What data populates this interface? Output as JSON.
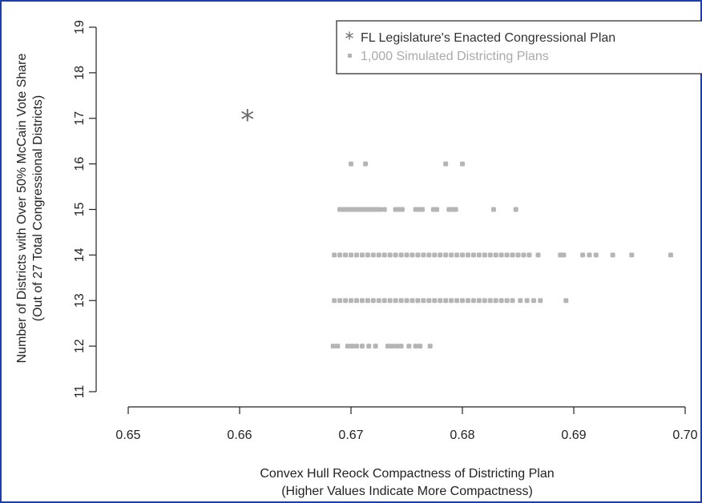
{
  "chart_data": {
    "type": "scatter",
    "title": "",
    "xlabel": [
      "Convex Hull Reock Compactness of Districting Plan",
      "(Higher Values Indicate More Compactness)"
    ],
    "ylabel": [
      "Number of Districts with Over 50% McCain Vote Share",
      "(Out of 27 Total Congressional Districts)"
    ],
    "xlim": [
      0.65,
      0.7
    ],
    "ylim": [
      11,
      19
    ],
    "xticks": [
      0.65,
      0.66,
      0.67,
      0.68,
      0.69,
      0.7
    ],
    "xtick_labels": [
      "0.65",
      "0.66",
      "0.67",
      "0.68",
      "0.69",
      "0.70"
    ],
    "yticks": [
      11,
      12,
      13,
      14,
      15,
      16,
      17,
      18,
      19
    ],
    "ytick_labels": [
      "11",
      "12",
      "13",
      "14",
      "15",
      "16",
      "17",
      "18",
      "19"
    ],
    "grid": false,
    "legend_position": "top-right",
    "colors": {
      "enacted": "#6b6b6b",
      "simulated": "#b5b5b5",
      "axis": "#222222",
      "frame": "#1f3ea8"
    },
    "series": [
      {
        "name": "FL Legislature's Enacted Congressional Plan",
        "marker": "*",
        "points": [
          {
            "x": 0.6607,
            "y": 17
          }
        ]
      },
      {
        "name": "1,000 Simulated Districting Plans",
        "marker": "square",
        "points": [
          {
            "x": 0.67,
            "y": 16
          },
          {
            "x": 0.6713,
            "y": 16
          },
          {
            "x": 0.6785,
            "y": 16
          },
          {
            "x": 0.68,
            "y": 16
          },
          {
            "x": 0.669,
            "y": 15
          },
          {
            "x": 0.6693,
            "y": 15
          },
          {
            "x": 0.6696,
            "y": 15
          },
          {
            "x": 0.6699,
            "y": 15
          },
          {
            "x": 0.6702,
            "y": 15
          },
          {
            "x": 0.6705,
            "y": 15
          },
          {
            "x": 0.6708,
            "y": 15
          },
          {
            "x": 0.6711,
            "y": 15
          },
          {
            "x": 0.6714,
            "y": 15
          },
          {
            "x": 0.6717,
            "y": 15
          },
          {
            "x": 0.672,
            "y": 15
          },
          {
            "x": 0.6723,
            "y": 15
          },
          {
            "x": 0.6726,
            "y": 15
          },
          {
            "x": 0.673,
            "y": 15
          },
          {
            "x": 0.674,
            "y": 15
          },
          {
            "x": 0.6743,
            "y": 15
          },
          {
            "x": 0.6746,
            "y": 15
          },
          {
            "x": 0.6758,
            "y": 15
          },
          {
            "x": 0.6761,
            "y": 15
          },
          {
            "x": 0.6764,
            "y": 15
          },
          {
            "x": 0.6774,
            "y": 15
          },
          {
            "x": 0.6777,
            "y": 15
          },
          {
            "x": 0.6788,
            "y": 15
          },
          {
            "x": 0.6791,
            "y": 15
          },
          {
            "x": 0.6794,
            "y": 15
          },
          {
            "x": 0.6828,
            "y": 15
          },
          {
            "x": 0.6848,
            "y": 15
          },
          {
            "x": 0.6685,
            "y": 14
          },
          {
            "x": 0.669,
            "y": 14
          },
          {
            "x": 0.6695,
            "y": 14
          },
          {
            "x": 0.67,
            "y": 14
          },
          {
            "x": 0.6705,
            "y": 14
          },
          {
            "x": 0.671,
            "y": 14
          },
          {
            "x": 0.6715,
            "y": 14
          },
          {
            "x": 0.672,
            "y": 14
          },
          {
            "x": 0.6725,
            "y": 14
          },
          {
            "x": 0.673,
            "y": 14
          },
          {
            "x": 0.6735,
            "y": 14
          },
          {
            "x": 0.674,
            "y": 14
          },
          {
            "x": 0.6745,
            "y": 14
          },
          {
            "x": 0.675,
            "y": 14
          },
          {
            "x": 0.6755,
            "y": 14
          },
          {
            "x": 0.676,
            "y": 14
          },
          {
            "x": 0.6765,
            "y": 14
          },
          {
            "x": 0.677,
            "y": 14
          },
          {
            "x": 0.6775,
            "y": 14
          },
          {
            "x": 0.678,
            "y": 14
          },
          {
            "x": 0.6785,
            "y": 14
          },
          {
            "x": 0.679,
            "y": 14
          },
          {
            "x": 0.6795,
            "y": 14
          },
          {
            "x": 0.68,
            "y": 14
          },
          {
            "x": 0.6805,
            "y": 14
          },
          {
            "x": 0.681,
            "y": 14
          },
          {
            "x": 0.6815,
            "y": 14
          },
          {
            "x": 0.682,
            "y": 14
          },
          {
            "x": 0.6825,
            "y": 14
          },
          {
            "x": 0.683,
            "y": 14
          },
          {
            "x": 0.6835,
            "y": 14
          },
          {
            "x": 0.684,
            "y": 14
          },
          {
            "x": 0.6845,
            "y": 14
          },
          {
            "x": 0.685,
            "y": 14
          },
          {
            "x": 0.6855,
            "y": 14
          },
          {
            "x": 0.686,
            "y": 14
          },
          {
            "x": 0.6868,
            "y": 14
          },
          {
            "x": 0.6888,
            "y": 14
          },
          {
            "x": 0.6891,
            "y": 14
          },
          {
            "x": 0.6908,
            "y": 14
          },
          {
            "x": 0.6914,
            "y": 14
          },
          {
            "x": 0.692,
            "y": 14
          },
          {
            "x": 0.6935,
            "y": 14
          },
          {
            "x": 0.6952,
            "y": 14
          },
          {
            "x": 0.6987,
            "y": 14
          },
          {
            "x": 0.6685,
            "y": 13
          },
          {
            "x": 0.669,
            "y": 13
          },
          {
            "x": 0.6695,
            "y": 13
          },
          {
            "x": 0.67,
            "y": 13
          },
          {
            "x": 0.6705,
            "y": 13
          },
          {
            "x": 0.671,
            "y": 13
          },
          {
            "x": 0.6715,
            "y": 13
          },
          {
            "x": 0.672,
            "y": 13
          },
          {
            "x": 0.6725,
            "y": 13
          },
          {
            "x": 0.673,
            "y": 13
          },
          {
            "x": 0.6735,
            "y": 13
          },
          {
            "x": 0.674,
            "y": 13
          },
          {
            "x": 0.6745,
            "y": 13
          },
          {
            "x": 0.675,
            "y": 13
          },
          {
            "x": 0.6755,
            "y": 13
          },
          {
            "x": 0.676,
            "y": 13
          },
          {
            "x": 0.6765,
            "y": 13
          },
          {
            "x": 0.677,
            "y": 13
          },
          {
            "x": 0.6775,
            "y": 13
          },
          {
            "x": 0.678,
            "y": 13
          },
          {
            "x": 0.6785,
            "y": 13
          },
          {
            "x": 0.679,
            "y": 13
          },
          {
            "x": 0.6795,
            "y": 13
          },
          {
            "x": 0.68,
            "y": 13
          },
          {
            "x": 0.6805,
            "y": 13
          },
          {
            "x": 0.681,
            "y": 13
          },
          {
            "x": 0.6815,
            "y": 13
          },
          {
            "x": 0.682,
            "y": 13
          },
          {
            "x": 0.6825,
            "y": 13
          },
          {
            "x": 0.683,
            "y": 13
          },
          {
            "x": 0.6835,
            "y": 13
          },
          {
            "x": 0.684,
            "y": 13
          },
          {
            "x": 0.6845,
            "y": 13
          },
          {
            "x": 0.6852,
            "y": 13
          },
          {
            "x": 0.6858,
            "y": 13
          },
          {
            "x": 0.6864,
            "y": 13
          },
          {
            "x": 0.687,
            "y": 13
          },
          {
            "x": 0.6893,
            "y": 13
          },
          {
            "x": 0.6684,
            "y": 12
          },
          {
            "x": 0.6688,
            "y": 12
          },
          {
            "x": 0.6697,
            "y": 12
          },
          {
            "x": 0.6701,
            "y": 12
          },
          {
            "x": 0.6705,
            "y": 12
          },
          {
            "x": 0.671,
            "y": 12
          },
          {
            "x": 0.6716,
            "y": 12
          },
          {
            "x": 0.6722,
            "y": 12
          },
          {
            "x": 0.6733,
            "y": 12
          },
          {
            "x": 0.6737,
            "y": 12
          },
          {
            "x": 0.6741,
            "y": 12
          },
          {
            "x": 0.6745,
            "y": 12
          },
          {
            "x": 0.6752,
            "y": 12
          },
          {
            "x": 0.6758,
            "y": 12
          },
          {
            "x": 0.6762,
            "y": 12
          },
          {
            "x": 0.6771,
            "y": 12
          }
        ]
      }
    ]
  }
}
